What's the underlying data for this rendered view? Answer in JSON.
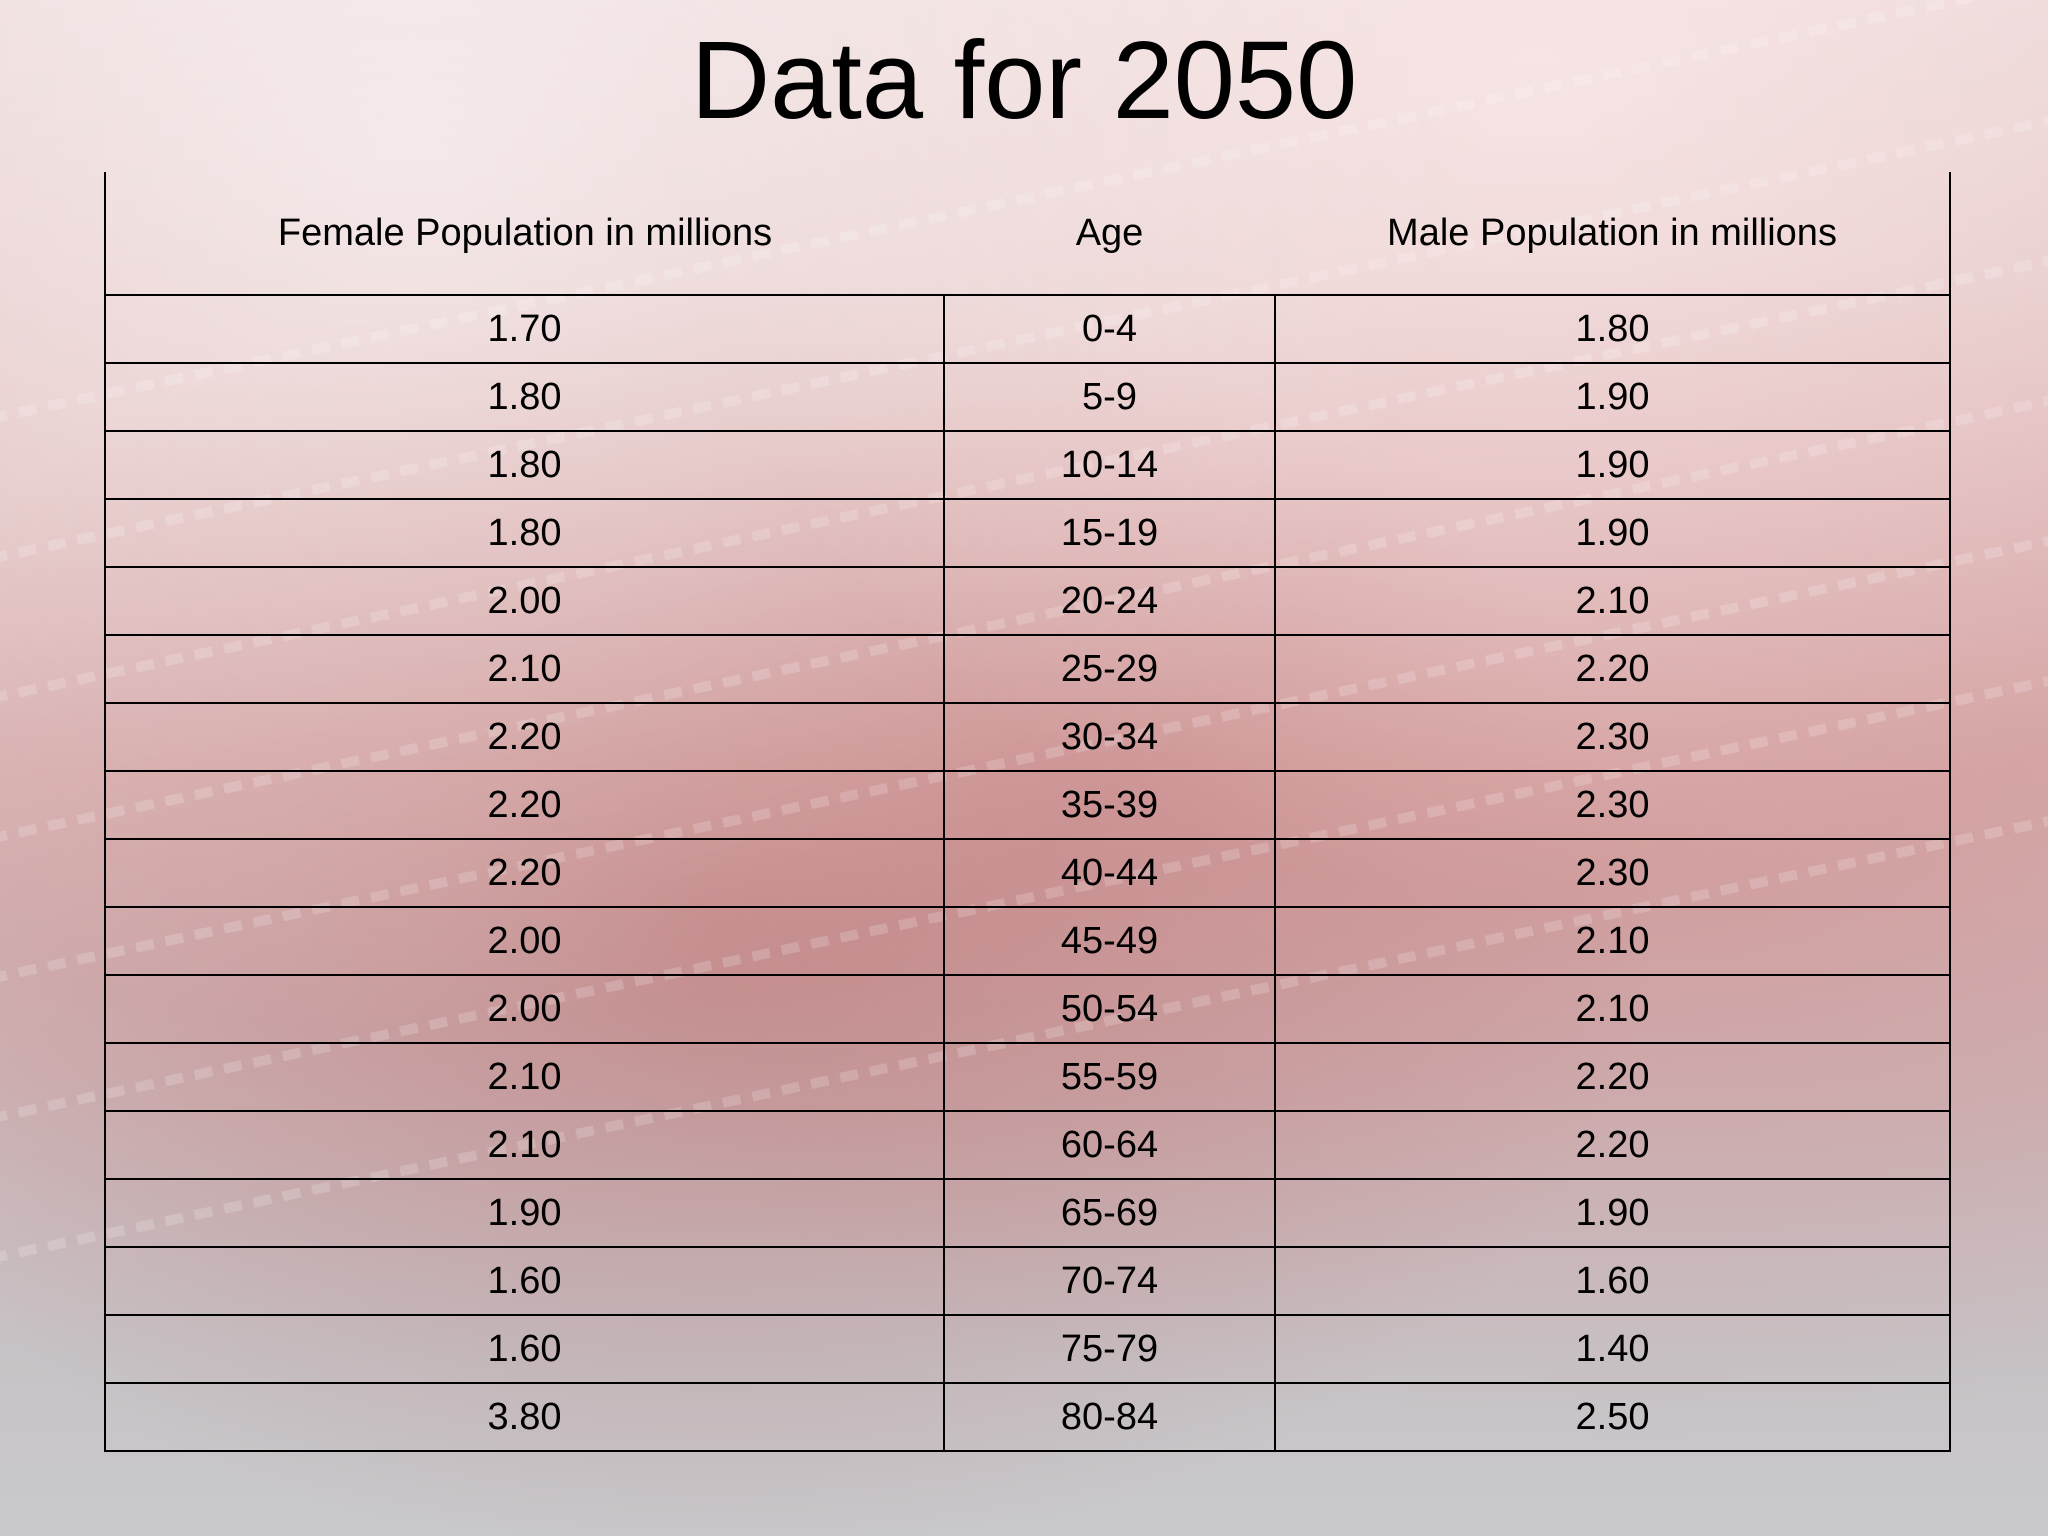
{
  "title": "Data for 2050",
  "table": {
    "headers": [
      "Female Population in millions",
      "Age",
      "Male Population in  millions"
    ],
    "rows": [
      [
        "1.70",
        "0-4",
        "1.80"
      ],
      [
        "1.80",
        "5-9",
        "1.90"
      ],
      [
        "1.80",
        "10-14",
        "1.90"
      ],
      [
        "1.80",
        "15-19",
        "1.90"
      ],
      [
        "2.00",
        "20-24",
        "2.10"
      ],
      [
        "2.10",
        "25-29",
        "2.20"
      ],
      [
        "2.20",
        "30-34",
        "2.30"
      ],
      [
        "2.20",
        "35-39",
        "2.30"
      ],
      [
        "2.20",
        "40-44",
        "2.30"
      ],
      [
        "2.00",
        "45-49",
        "2.10"
      ],
      [
        "2.00",
        "50-54",
        "2.10"
      ],
      [
        "2.10",
        "55-59",
        "2.20"
      ],
      [
        "2.10",
        "60-64",
        "2.20"
      ],
      [
        "1.90",
        "65-69",
        "1.90"
      ],
      [
        "1.60",
        "70-74",
        "1.60"
      ],
      [
        "1.60",
        "75-79",
        "1.40"
      ],
      [
        "3.80",
        "80-84",
        "2.50"
      ]
    ]
  }
}
